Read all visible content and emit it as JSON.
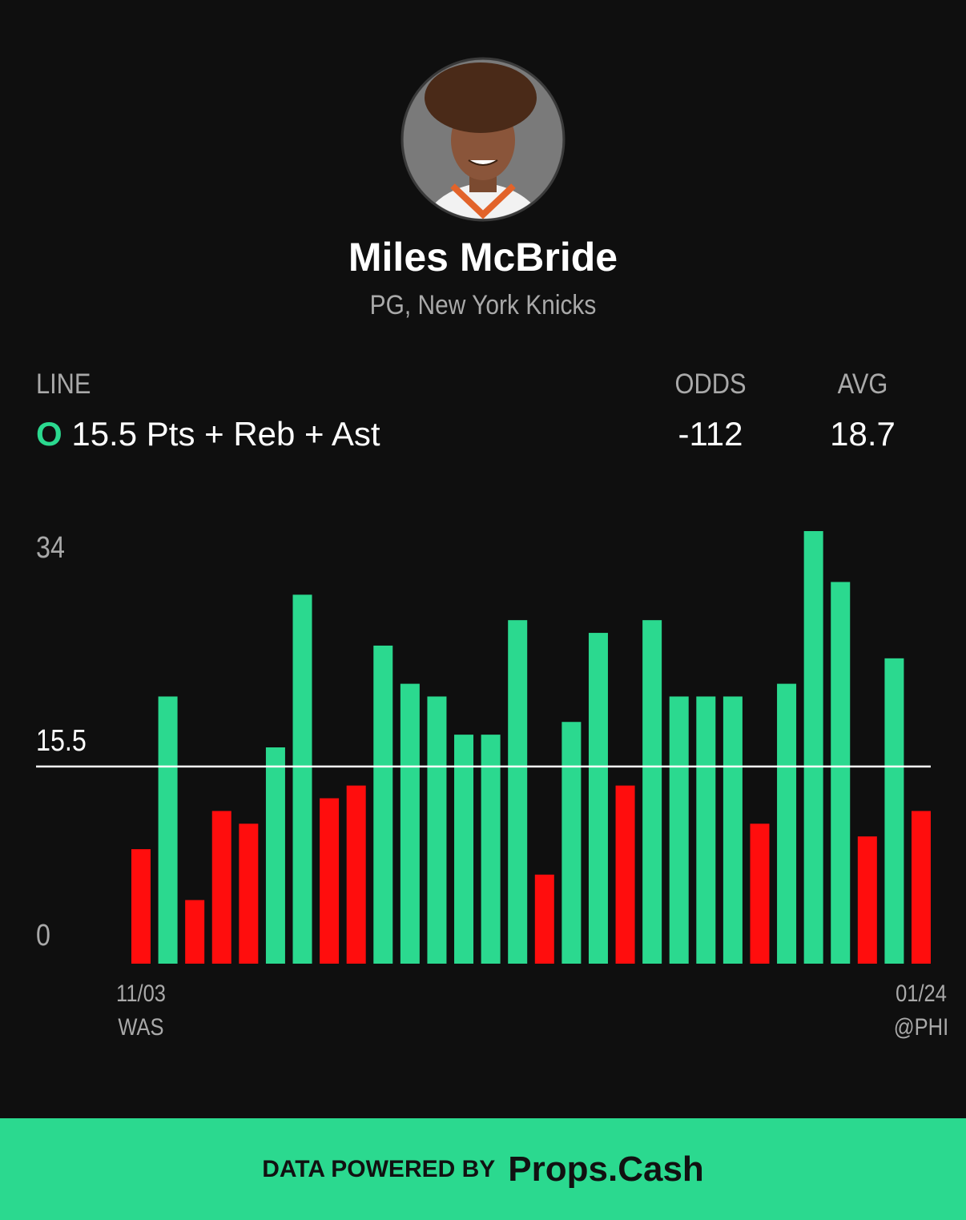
{
  "player": {
    "name": "Miles McBride",
    "position_team": "PG, New York Knicks"
  },
  "stats": {
    "line_label": "LINE",
    "side": "O",
    "market": "Pts + Reb + Ast",
    "odds_label": "ODDS",
    "odds": -112,
    "avg_label": "AVG",
    "avg": 18.7
  },
  "chart_data": {
    "type": "bar",
    "categories": [
      "11/03",
      null,
      null,
      null,
      null,
      null,
      null,
      null,
      null,
      null,
      null,
      null,
      null,
      null,
      null,
      null,
      null,
      null,
      null,
      null,
      null,
      null,
      null,
      null,
      null,
      null,
      null,
      null,
      null,
      "01/24"
    ],
    "opponents": [
      "WAS",
      null,
      null,
      null,
      null,
      null,
      null,
      null,
      null,
      null,
      null,
      null,
      null,
      null,
      null,
      null,
      null,
      null,
      null,
      null,
      null,
      null,
      null,
      null,
      null,
      null,
      null,
      null,
      null,
      "@PHI"
    ],
    "values": [
      9,
      21,
      5,
      12,
      11,
      17,
      29,
      13,
      14,
      25,
      22,
      21,
      18,
      18,
      27,
      7,
      19,
      26,
      14,
      27,
      21,
      21,
      21,
      11,
      22,
      34,
      30,
      10,
      24,
      12
    ],
    "threshold": 15.5,
    "over_color": "#2bd98f",
    "under_color": "#ff0d0d",
    "line_color": "#ffffff",
    "ylim": [
      0,
      34
    ],
    "yticks": [
      0,
      34
    ]
  },
  "footer": {
    "prefix": "DATA POWERED BY",
    "brand": "Props.Cash"
  }
}
